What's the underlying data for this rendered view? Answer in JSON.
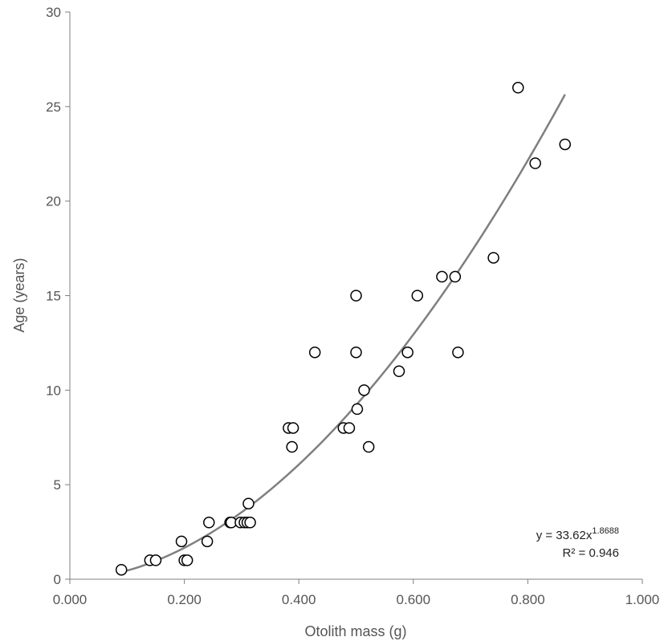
{
  "chart_data": {
    "type": "scatter",
    "title": "",
    "xlabel": "Otolith mass (g)",
    "ylabel": "Age (years)",
    "xlim": [
      0,
      1
    ],
    "ylim": [
      0,
      30
    ],
    "x_ticks": [
      "0.000",
      "0.200",
      "0.400",
      "0.600",
      "0.800",
      "1.000"
    ],
    "y_ticks": [
      "0",
      "5",
      "10",
      "15",
      "20",
      "25",
      "30"
    ],
    "grid": false,
    "legend": "none",
    "series": [
      {
        "points": [
          [
            0.09,
            0.5
          ],
          [
            0.14,
            1
          ],
          [
            0.15,
            1
          ],
          [
            0.2,
            1
          ],
          [
            0.205,
            1
          ],
          [
            0.195,
            2
          ],
          [
            0.24,
            2
          ],
          [
            0.243,
            3
          ],
          [
            0.28,
            3
          ],
          [
            0.282,
            3
          ],
          [
            0.298,
            3
          ],
          [
            0.305,
            3
          ],
          [
            0.31,
            3
          ],
          [
            0.315,
            3
          ],
          [
            0.312,
            4
          ],
          [
            0.382,
            8
          ],
          [
            0.39,
            8
          ],
          [
            0.388,
            7
          ],
          [
            0.428,
            12
          ],
          [
            0.478,
            8
          ],
          [
            0.488,
            8
          ],
          [
            0.5,
            15
          ],
          [
            0.5,
            12
          ],
          [
            0.502,
            9
          ],
          [
            0.514,
            10
          ],
          [
            0.522,
            7
          ],
          [
            0.575,
            11
          ],
          [
            0.59,
            12
          ],
          [
            0.607,
            15
          ],
          [
            0.65,
            16
          ],
          [
            0.673,
            16
          ],
          [
            0.678,
            12
          ],
          [
            0.74,
            17
          ],
          [
            0.783,
            26
          ],
          [
            0.813,
            22
          ],
          [
            0.865,
            23
          ]
        ]
      }
    ],
    "trendline": {
      "type": "power",
      "coefficient": 33.62,
      "exponent": 1.8688,
      "x_range": [
        0.09,
        0.865
      ],
      "equation_prefix": "y = 33.62x",
      "equation_exponent": "1.8688",
      "r_squared": "R² = 0.946"
    },
    "colors": {
      "axis": "#7f7f7f",
      "marker_stroke": "#000000",
      "trendline": "#7f7f7f"
    }
  }
}
